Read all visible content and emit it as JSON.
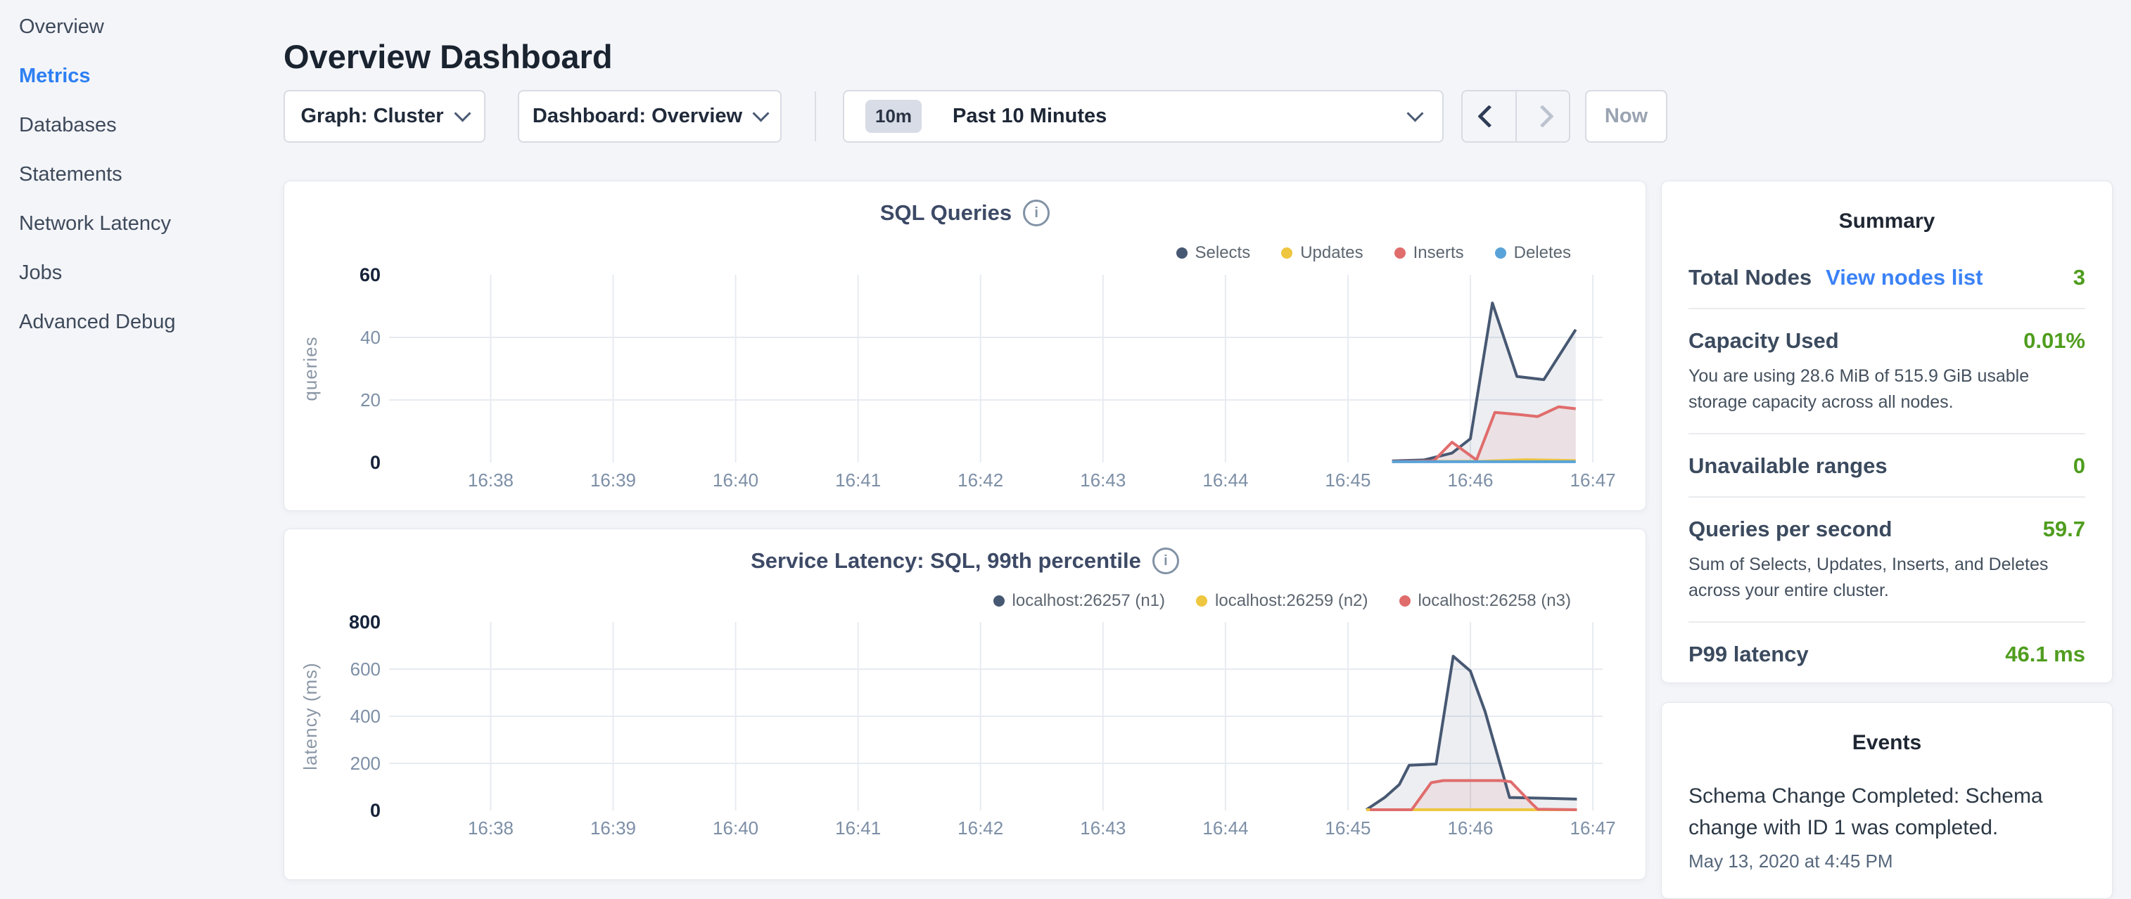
{
  "header": {
    "title": "Overview Dashboard"
  },
  "sidebar": {
    "items": [
      {
        "label": "Overview",
        "active": false
      },
      {
        "label": "Metrics",
        "active": true
      },
      {
        "label": "Databases",
        "active": false
      },
      {
        "label": "Statements",
        "active": false
      },
      {
        "label": "Network Latency",
        "active": false
      },
      {
        "label": "Jobs",
        "active": false
      },
      {
        "label": "Advanced Debug",
        "active": false
      }
    ]
  },
  "toolbar": {
    "graph": {
      "label": "Graph: Cluster"
    },
    "dashboard": {
      "label": "Dashboard: Overview"
    },
    "time": {
      "badge": "10m",
      "label": "Past 10 Minutes"
    },
    "now_label": "Now"
  },
  "summary": {
    "title": "Summary",
    "value_color": "#4f9d1e",
    "link_color": "#3b82f6",
    "rows": [
      {
        "label": "Total Nodes",
        "link": "View nodes list",
        "value": "3"
      },
      {
        "label": "Capacity Used",
        "value": "0.01%",
        "desc": "You are using 28.6 MiB of 515.9 GiB usable storage capacity across all nodes."
      },
      {
        "label": "Unavailable ranges",
        "value": "0"
      },
      {
        "label": "Queries per second",
        "value": "59.7",
        "desc": "Sum of Selects, Updates, Inserts, and Deletes across your entire cluster."
      },
      {
        "label": "P99 latency",
        "value": "46.1 ms"
      }
    ]
  },
  "events": {
    "title": "Events",
    "items": [
      {
        "text": "Schema Change Completed: Schema change with ID 1 was completed.",
        "timestamp": "May 13, 2020 at 4:45 PM"
      }
    ]
  },
  "chart_data": [
    {
      "type": "line",
      "title": "SQL Queries",
      "ylabel": "queries",
      "xlabel": "",
      "xlim": [
        37.17,
        47.08
      ],
      "ylim": [
        0,
        60
      ],
      "grid": true,
      "legend_position": "top-right",
      "x_ticks": [
        {
          "t": 38,
          "label": "16:38"
        },
        {
          "t": 39,
          "label": "16:39"
        },
        {
          "t": 40,
          "label": "16:40"
        },
        {
          "t": 41,
          "label": "16:41"
        },
        {
          "t": 42,
          "label": "16:42"
        },
        {
          "t": 43,
          "label": "16:43"
        },
        {
          "t": 44,
          "label": "16:44"
        },
        {
          "t": 45,
          "label": "16:45"
        },
        {
          "t": 46,
          "label": "16:46"
        },
        {
          "t": 47,
          "label": "16:47"
        }
      ],
      "y_ticks": [
        {
          "v": 0,
          "label": "0",
          "strong": true
        },
        {
          "v": 20,
          "label": "20",
          "grid": true
        },
        {
          "v": 40,
          "label": "40",
          "grid": true
        },
        {
          "v": 60,
          "label": "60",
          "strong": true
        }
      ],
      "series": [
        {
          "name": "Selects",
          "color": "#475872",
          "fill": "rgba(71,88,114,0.10)",
          "points": [
            [
              45.36,
              0.5
            ],
            [
              45.62,
              0.8
            ],
            [
              45.85,
              3
            ],
            [
              46.0,
              7.6
            ],
            [
              46.18,
              51
            ],
            [
              46.38,
              27.5
            ],
            [
              46.6,
              26.5
            ],
            [
              46.86,
              42.5
            ]
          ]
        },
        {
          "name": "Updates",
          "color": "#eec63f",
          "points": [
            [
              45.36,
              0.3
            ],
            [
              46.1,
              0.4
            ],
            [
              46.45,
              0.9
            ],
            [
              46.86,
              0.6
            ]
          ]
        },
        {
          "name": "Inserts",
          "color": "#e06c6c",
          "fill": "rgba(224,108,108,0.10)",
          "points": [
            [
              45.36,
              0.3
            ],
            [
              45.7,
              0.5
            ],
            [
              45.85,
              6.5
            ],
            [
              46.05,
              0.8
            ],
            [
              46.2,
              16
            ],
            [
              46.38,
              15.4
            ],
            [
              46.55,
              14.7
            ],
            [
              46.72,
              17.8
            ],
            [
              46.86,
              17.2
            ]
          ]
        },
        {
          "name": "Deletes",
          "color": "#59a3d9",
          "points": [
            [
              45.36,
              0.25
            ],
            [
              46.86,
              0.25
            ]
          ]
        }
      ]
    },
    {
      "type": "line",
      "title": "Service Latency: SQL, 99th percentile",
      "ylabel": "latency (ms)",
      "xlabel": "",
      "xlim": [
        37.17,
        47.08
      ],
      "ylim": [
        0,
        800
      ],
      "grid": true,
      "legend_position": "top-right",
      "x_ticks": [
        {
          "t": 38,
          "label": "16:38"
        },
        {
          "t": 39,
          "label": "16:39"
        },
        {
          "t": 40,
          "label": "16:40"
        },
        {
          "t": 41,
          "label": "16:41"
        },
        {
          "t": 42,
          "label": "16:42"
        },
        {
          "t": 43,
          "label": "16:43"
        },
        {
          "t": 44,
          "label": "16:44"
        },
        {
          "t": 45,
          "label": "16:45"
        },
        {
          "t": 46,
          "label": "16:46"
        },
        {
          "t": 47,
          "label": "16:47"
        }
      ],
      "y_ticks": [
        {
          "v": 0,
          "label": "0",
          "strong": true
        },
        {
          "v": 200,
          "label": "200",
          "grid": true
        },
        {
          "v": 400,
          "label": "400",
          "grid": true
        },
        {
          "v": 600,
          "label": "600",
          "grid": true
        },
        {
          "v": 800,
          "label": "800",
          "strong": true
        }
      ],
      "series": [
        {
          "name": "localhost:26257 (n1)",
          "color": "#475872",
          "fill": "rgba(71,88,114,0.10)",
          "points": [
            [
              45.15,
              3
            ],
            [
              45.3,
              55
            ],
            [
              45.42,
              110
            ],
            [
              45.5,
              192
            ],
            [
              45.72,
              197
            ],
            [
              45.86,
              655
            ],
            [
              46.0,
              592
            ],
            [
              46.12,
              420
            ],
            [
              46.32,
              55
            ],
            [
              46.6,
              52
            ],
            [
              46.87,
              48
            ]
          ]
        },
        {
          "name": "localhost:26259 (n2)",
          "color": "#eec63f",
          "points": [
            [
              45.15,
              3
            ],
            [
              46.87,
              3
            ]
          ]
        },
        {
          "name": "localhost:26258 (n3)",
          "color": "#e06c6c",
          "fill": "rgba(224,108,108,0.10)",
          "points": [
            [
              45.18,
              3
            ],
            [
              45.52,
              3
            ],
            [
              45.68,
              118
            ],
            [
              45.78,
              127
            ],
            [
              46.25,
              127
            ],
            [
              46.33,
              122
            ],
            [
              46.5,
              30
            ],
            [
              46.55,
              5
            ],
            [
              46.87,
              3
            ]
          ]
        }
      ]
    }
  ]
}
